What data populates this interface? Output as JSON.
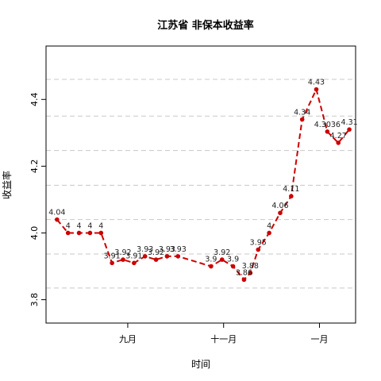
{
  "chart_data": {
    "type": "line",
    "title": "江苏省 非保本收益率",
    "xlabel": "时间",
    "ylabel": "收益率",
    "ylim": [
      3.73,
      4.56
    ],
    "yticks": [
      3.8,
      4.0,
      4.2,
      4.4
    ],
    "ytick_labels": [
      "3.8",
      "4.0",
      "4.2",
      "4.4"
    ],
    "x_range": [
      "2016-07-11",
      "2017-01-24"
    ],
    "xticks": [
      {
        "date": "2016-09-01",
        "label": "九月"
      },
      {
        "date": "2016-11-01",
        "label": "十一月"
      },
      {
        "date": "2017-01-01",
        "label": "一月"
      }
    ],
    "hgrid": [
      3.835,
      3.937,
      4.04,
      4.143,
      4.247,
      4.35,
      4.46
    ],
    "series": [
      {
        "color": "#cc0000",
        "line_style": "dashed",
        "points": [
          {
            "x": "2016-07-18",
            "y": 4.04,
            "label": "4.04"
          },
          {
            "x": "2016-07-25",
            "y": 4.0,
            "label": "4"
          },
          {
            "x": "2016-08-01",
            "y": 4.0,
            "label": "4"
          },
          {
            "x": "2016-08-08",
            "y": 4.0,
            "label": "4"
          },
          {
            "x": "2016-08-15",
            "y": 4.0,
            "label": "4"
          },
          {
            "x": "2016-08-22",
            "y": 3.91,
            "label": "3.91"
          },
          {
            "x": "2016-08-29",
            "y": 3.92,
            "label": "3.92"
          },
          {
            "x": "2016-09-05",
            "y": 3.91,
            "label": "3.91"
          },
          {
            "x": "2016-09-12",
            "y": 3.93,
            "label": "3.93"
          },
          {
            "x": "2016-09-19",
            "y": 3.92,
            "label": "3.92"
          },
          {
            "x": "2016-09-26",
            "y": 3.93,
            "label": "3.93"
          },
          {
            "x": "2016-10-03",
            "y": 3.93,
            "label": "3.93"
          },
          {
            "x": "2016-10-24",
            "y": 3.9,
            "label": "3.9"
          },
          {
            "x": "2016-10-31",
            "y": 3.92,
            "label": "3.92"
          },
          {
            "x": "2016-11-07",
            "y": 3.9,
            "label": "3.9"
          },
          {
            "x": "2016-11-14",
            "y": 3.86,
            "label": "3.86"
          },
          {
            "x": "2016-11-18",
            "y": 3.88,
            "label": "3.88"
          },
          {
            "x": "2016-11-23",
            "y": 3.95,
            "label": "3.95"
          },
          {
            "x": "2016-11-30",
            "y": 4.0,
            "label": "4"
          },
          {
            "x": "2016-12-07",
            "y": 4.06,
            "label": "4.06"
          },
          {
            "x": "2016-12-14",
            "y": 4.11,
            "label": "4.11"
          },
          {
            "x": "2016-12-21",
            "y": 4.34,
            "label": "4.34"
          },
          {
            "x": "2016-12-30",
            "y": 4.43,
            "label": "4.43"
          },
          {
            "x": "2017-01-06",
            "y": 4.3036,
            "label": "4.3036"
          },
          {
            "x": "2017-01-13",
            "y": 4.27,
            "label": "4.27"
          },
          {
            "x": "2017-01-20",
            "y": 4.31,
            "label": "4.31"
          }
        ]
      }
    ]
  }
}
